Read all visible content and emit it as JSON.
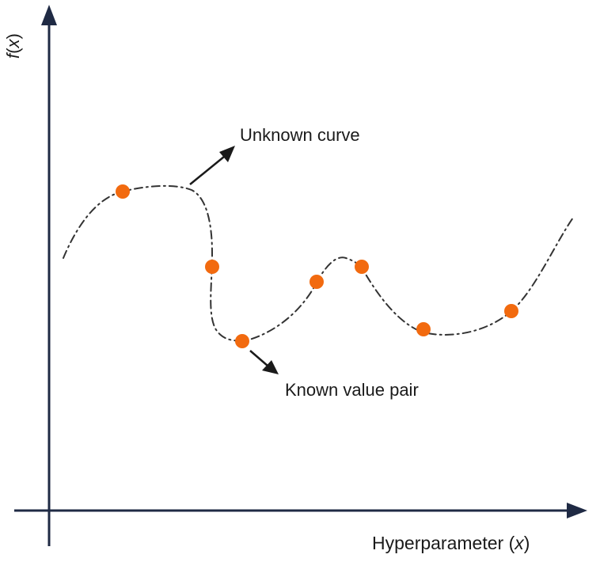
{
  "labels": {
    "unknown_curve": "Unknown curve",
    "known_value_pair": "Known value pair"
  },
  "axes": {
    "x_title_prefix": "Hyperparameter (",
    "x_title_var": "x",
    "x_title_suffix": ")",
    "y_title_func": "f",
    "y_title_open": "(",
    "y_title_var": "x",
    "y_title_close": ")"
  },
  "colors": {
    "axis": "#1f2a44",
    "curve": "#333333",
    "point": "#f26a0f",
    "arrow": "#1a1a1a"
  },
  "icons": {
    "axis_arrow": "arrowhead-icon",
    "pointer_arrow": "arrow-icon"
  }
}
